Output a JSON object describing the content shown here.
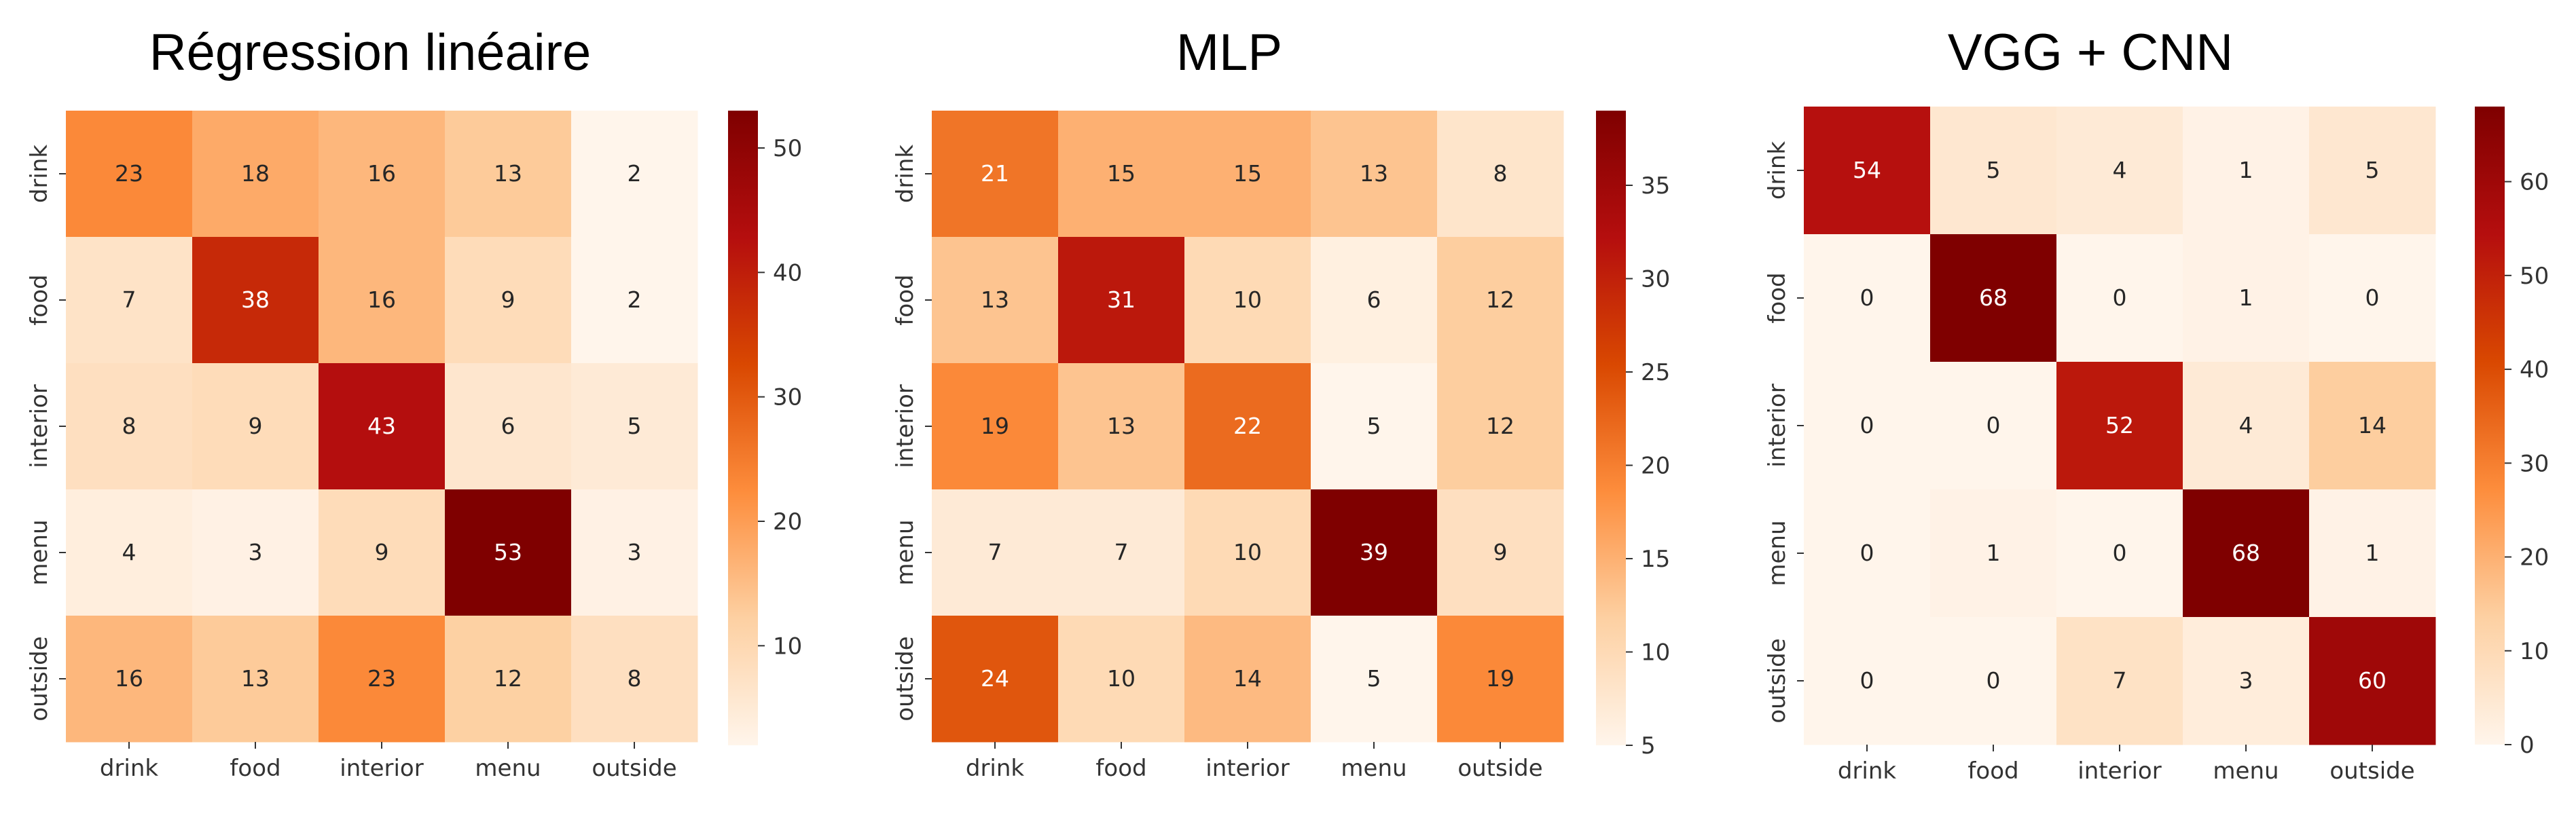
{
  "colors": {
    "colormap": [
      "#fff5eb",
      "#fdd0a2",
      "#fd8d3c",
      "#d94801",
      "#b50e0e",
      "#7f0000"
    ],
    "text_dark": "#262626",
    "text_light": "#ffffff"
  },
  "chart_data": [
    {
      "type": "heatmap",
      "title": "Régression linéaire",
      "x_categories": [
        "drink",
        "food",
        "interior",
        "menu",
        "outside"
      ],
      "y_categories": [
        "drink",
        "food",
        "interior",
        "menu",
        "outside"
      ],
      "values": [
        [
          23,
          18,
          16,
          13,
          2
        ],
        [
          7,
          38,
          16,
          9,
          2
        ],
        [
          8,
          9,
          43,
          6,
          5
        ],
        [
          4,
          3,
          9,
          53,
          3
        ],
        [
          16,
          13,
          23,
          12,
          8
        ]
      ],
      "vmin": 2,
      "vmax": 53,
      "colorbar_ticks": [
        10,
        20,
        30,
        40,
        50
      ],
      "xlabel": "",
      "ylabel": ""
    },
    {
      "type": "heatmap",
      "title": "MLP",
      "x_categories": [
        "drink",
        "food",
        "interior",
        "menu",
        "outside"
      ],
      "y_categories": [
        "drink",
        "food",
        "interior",
        "menu",
        "outside"
      ],
      "values": [
        [
          21,
          15,
          15,
          13,
          8
        ],
        [
          13,
          31,
          10,
          6,
          12
        ],
        [
          19,
          13,
          22,
          5,
          12
        ],
        [
          7,
          7,
          10,
          39,
          9
        ],
        [
          24,
          10,
          14,
          5,
          19
        ]
      ],
      "vmin": 5,
      "vmax": 39,
      "colorbar_ticks": [
        5,
        10,
        15,
        20,
        25,
        30,
        35
      ],
      "xlabel": "",
      "ylabel": ""
    },
    {
      "type": "heatmap",
      "title": "VGG + CNN",
      "x_categories": [
        "drink",
        "food",
        "interior",
        "menu",
        "outside"
      ],
      "y_categories": [
        "drink",
        "food",
        "interior",
        "menu",
        "outside"
      ],
      "values": [
        [
          54,
          5,
          4,
          1,
          5
        ],
        [
          0,
          68,
          0,
          1,
          0
        ],
        [
          0,
          0,
          52,
          4,
          14
        ],
        [
          0,
          1,
          0,
          68,
          1
        ],
        [
          0,
          0,
          7,
          3,
          60
        ]
      ],
      "vmin": 0,
      "vmax": 68,
      "colorbar_ticks": [
        0,
        10,
        20,
        30,
        40,
        50,
        60
      ],
      "xlabel": "",
      "ylabel": ""
    }
  ]
}
